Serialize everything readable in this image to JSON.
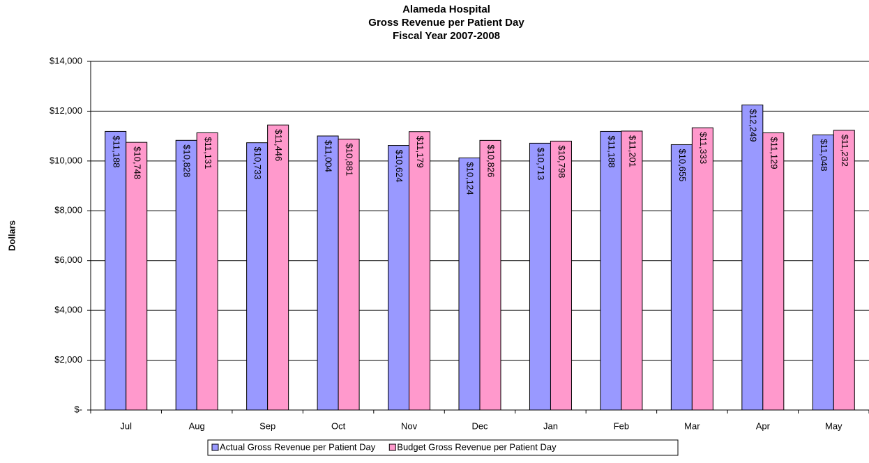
{
  "chart_data": {
    "type": "bar",
    "title": [
      "Alameda Hospital",
      "Gross Revenue per Patient Day",
      "Fiscal Year 2007-2008"
    ],
    "y_label": "Dollars",
    "categories": [
      "Jul",
      "Aug",
      "Sep",
      "Oct",
      "Nov",
      "Dec",
      "Jan",
      "Feb",
      "Mar",
      "Apr",
      "May"
    ],
    "series": [
      {
        "name": "Actual Gross Revenue per Patient Day",
        "color": "#9999ff",
        "values": [
          11188,
          10828,
          10733,
          11004,
          10624,
          10124,
          10713,
          11188,
          10655,
          12249,
          11048
        ],
        "value_labels": [
          "$11,188",
          "$10,828",
          "$10,733",
          "$11,004",
          "$10,624",
          "$10,124",
          "$10,713",
          "$11,188",
          "$10,655",
          "$12,249",
          "$11,048"
        ]
      },
      {
        "name": "Budget Gross Revenue per Patient Day",
        "color": "#ff99cc",
        "values": [
          10748,
          11131,
          11446,
          10881,
          11179,
          10826,
          10798,
          11201,
          11333,
          11129,
          11232
        ],
        "value_labels": [
          "$10,748",
          "$11,131",
          "$11,446",
          "$10,881",
          "$11,179",
          "$10,826",
          "$10,798",
          "$11,201",
          "$11,333",
          "$11,129",
          "$11,232"
        ]
      }
    ],
    "ylim": [
      0,
      14000
    ],
    "yticks": [
      {
        "value": 0,
        "label": "$-"
      },
      {
        "value": 2000,
        "label": "$2,000"
      },
      {
        "value": 4000,
        "label": "$4,000"
      },
      {
        "value": 6000,
        "label": "$6,000"
      },
      {
        "value": 8000,
        "label": "$8,000"
      },
      {
        "value": 10000,
        "label": "$10,000"
      },
      {
        "value": 12000,
        "label": "$12,000"
      },
      {
        "value": 14000,
        "label": "$14,000"
      }
    ],
    "grid": true,
    "legend": "bottom"
  }
}
